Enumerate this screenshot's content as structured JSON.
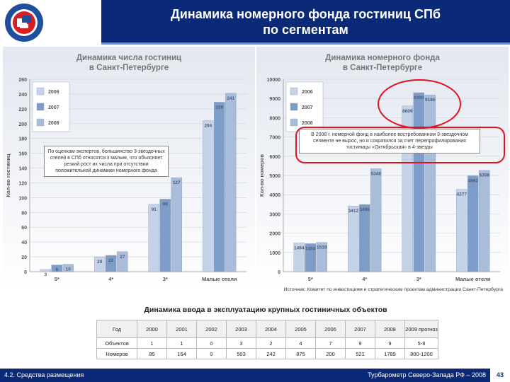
{
  "header": {
    "title_line1": "Динамика номерного фонда гостиниц СПб",
    "title_line2": "по сегментам"
  },
  "left_callout": "По оценкам экспертов, большинство 3-звездочных отелей в СПб относятся к малым, что объясняет резкий рост их числа при отсутствии положительной динамики номерного фонда",
  "right_callout": "В 2008 г. номерной фонд в наиболее востребованном 3-звездочном сегменте не вырос, но и сократился за счет перепрофилирования гостиницы «Октябрьская» в 4-звезды",
  "source": "Источник: Комитет по инвестициям и стратегическим проектам администрации Санкт-Петербурга",
  "chart_data": [
    {
      "type": "bar",
      "title_line1": "Динамика числа гостиниц",
      "title_line2": "в Санкт-Петербурге",
      "ylabel": "Кол-во гостиниц",
      "categories": [
        "5*",
        "4*",
        "3*",
        "Малые отели"
      ],
      "ylim": [
        0,
        260
      ],
      "yticks": [
        0,
        20,
        40,
        60,
        80,
        100,
        120,
        140,
        160,
        180,
        200,
        220,
        240,
        260
      ],
      "series": [
        {
          "name": "2006",
          "color": "#c4d3e8",
          "values": [
            3,
            20,
            91,
            204
          ]
        },
        {
          "name": "2007",
          "color": "#7d9cc8",
          "values": [
            9,
            22,
            98,
            229
          ]
        },
        {
          "name": "2008",
          "color": "#a9bddb",
          "values": [
            10,
            27,
            127,
            241
          ]
        }
      ],
      "legend_position": "top-left",
      "grid": true
    },
    {
      "type": "bar",
      "title_line1": "Динамика номерного фонда",
      "title_line2": "в Санкт-Петербурге",
      "ylabel": "Кол-во номеров",
      "categories": [
        "5*",
        "4*",
        "3*",
        "Малые отели"
      ],
      "ylim": [
        0,
        10000
      ],
      "yticks": [
        0,
        1000,
        2000,
        3000,
        4000,
        5000,
        6000,
        7000,
        8000,
        9000,
        10000
      ],
      "series": [
        {
          "name": "2006",
          "color": "#c4d3e8",
          "values": [
            1494,
            3412,
            8609,
            4277
          ]
        },
        {
          "name": "2007",
          "color": "#7d9cc8",
          "values": [
            1454,
            3488,
            9300,
            4983
          ]
        },
        {
          "name": "2008",
          "color": "#a9bddb",
          "values": [
            1519,
            5348,
            9185,
            5268
          ]
        }
      ],
      "value_labels": [
        [
          "1494",
          "3412",
          "8609",
          "4277"
        ],
        [
          "1454",
          "3488",
          "9300",
          "4983"
        ],
        [
          "1519",
          "5348",
          "9185",
          "5268"
        ]
      ],
      "legend_position": "top-left",
      "grid": true
    }
  ],
  "intro_table": {
    "title": "Динамика ввода в эксплуатацию крупных гостиничных объектов",
    "header_label": "Год",
    "years": [
      "2000",
      "2001",
      "2002",
      "2003",
      "2004",
      "2005",
      "2006",
      "2007",
      "2008",
      "2009 прогноз"
    ],
    "rows": [
      {
        "label": "Объектов",
        "values": [
          "1",
          "1",
          "0",
          "3",
          "2",
          "4",
          "7",
          "9",
          "9",
          "5-8"
        ]
      },
      {
        "label": "Номеров",
        "values": [
          "85",
          "164",
          "0",
          "503",
          "242",
          "875",
          "200",
          "521",
          "1789",
          "800-1200"
        ]
      }
    ]
  },
  "footer": {
    "left": "4.2. Средства размещения",
    "right": "Турбарометр Северо-Запада РФ – 2008",
    "page": "43"
  },
  "colors": {
    "brand_navy": "#0a2a78",
    "highlight": "#e0141e",
    "title_grey": "#767676"
  }
}
